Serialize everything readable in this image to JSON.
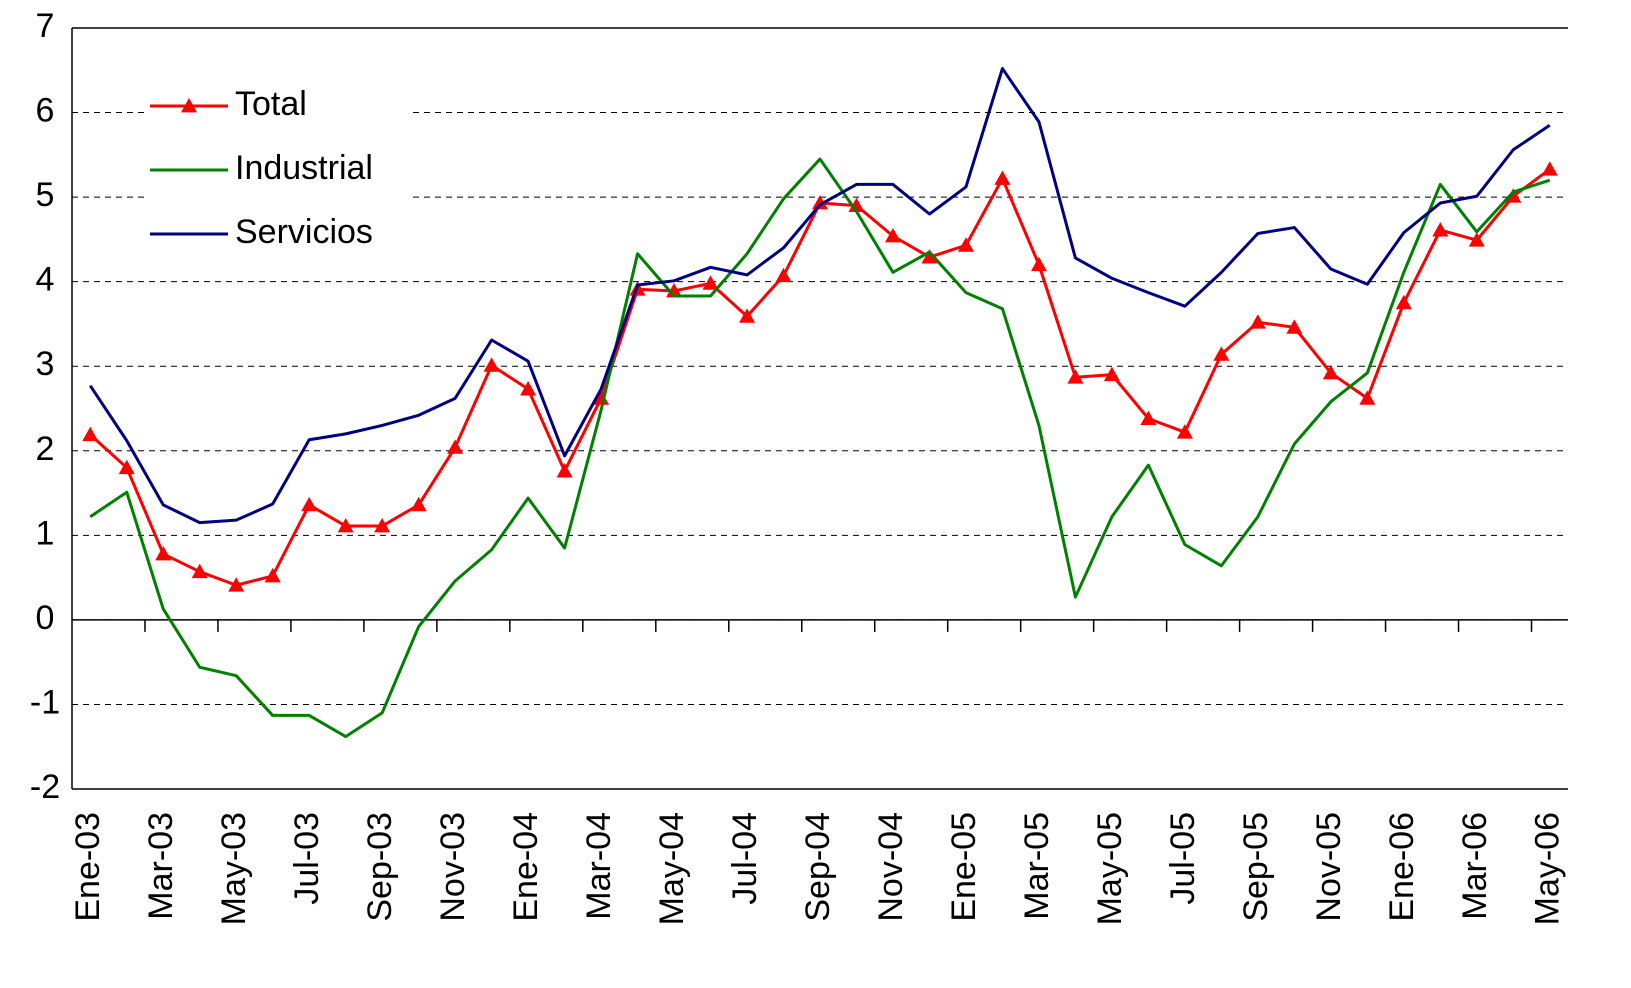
{
  "chart_data": {
    "type": "line",
    "categories": [
      "Ene-03",
      null,
      "Mar-03",
      null,
      "May-03",
      null,
      "Jul-03",
      null,
      "Sep-03",
      null,
      "Nov-03",
      null,
      "Ene-04",
      null,
      "Mar-04",
      null,
      "May-04",
      null,
      "Jul-04",
      null,
      "Sep-04",
      null,
      "Nov-04",
      null,
      "Ene-05",
      null,
      "Mar-05",
      null,
      "May-05",
      null,
      "Jul-05",
      null,
      "Sep-05",
      null,
      "Nov-05",
      null,
      "Ene-06",
      null,
      "Mar-06",
      null,
      "May-06"
    ],
    "series": [
      {
        "name": "Total",
        "color": "#ff0000",
        "marker": "triangle",
        "values": [
          2.19,
          1.8,
          0.78,
          0.57,
          0.41,
          0.52,
          1.36,
          1.11,
          1.11,
          1.36,
          2.04,
          3.01,
          2.73,
          1.76,
          2.62,
          3.91,
          3.89,
          3.98,
          3.59,
          4.07,
          4.93,
          4.9,
          4.54,
          4.29,
          4.43,
          5.22,
          4.2,
          2.87,
          2.9,
          2.38,
          2.22,
          3.14,
          3.52,
          3.46,
          2.92,
          2.62,
          3.75,
          4.61,
          4.49,
          5.01,
          5.33
        ]
      },
      {
        "name": "Industrial",
        "color": "#008000",
        "values": [
          1.22,
          1.51,
          0.13,
          -0.56,
          -0.66,
          -1.13,
          -1.13,
          -1.38,
          -1.1,
          -0.08,
          0.46,
          0.83,
          1.44,
          0.85,
          2.48,
          4.33,
          3.83,
          3.83,
          4.33,
          4.98,
          5.45,
          4.83,
          4.11,
          4.35,
          3.87,
          3.68,
          2.3,
          0.27,
          1.22,
          1.83,
          0.89,
          0.64,
          1.22,
          2.08,
          2.58,
          2.92,
          4.11,
          5.15,
          4.59,
          5.06,
          5.2
        ]
      },
      {
        "name": "Servicios",
        "color": "#000080",
        "values": [
          2.77,
          2.12,
          1.36,
          1.15,
          1.18,
          1.37,
          2.13,
          2.2,
          2.3,
          2.42,
          2.62,
          3.31,
          3.06,
          1.94,
          2.73,
          3.96,
          4.01,
          4.17,
          4.08,
          4.4,
          4.91,
          5.15,
          5.15,
          4.8,
          5.12,
          6.52,
          5.89,
          4.28,
          4.04,
          3.87,
          3.71,
          4.11,
          4.57,
          4.64,
          4.15,
          3.97,
          4.58,
          4.93,
          5.01,
          5.56,
          5.85
        ]
      }
    ],
    "ylim": [
      -2,
      7
    ],
    "yticks": [
      -2,
      -1,
      0,
      1,
      2,
      3,
      4,
      5,
      6,
      7
    ],
    "grid": true,
    "legend": "upper-left"
  }
}
